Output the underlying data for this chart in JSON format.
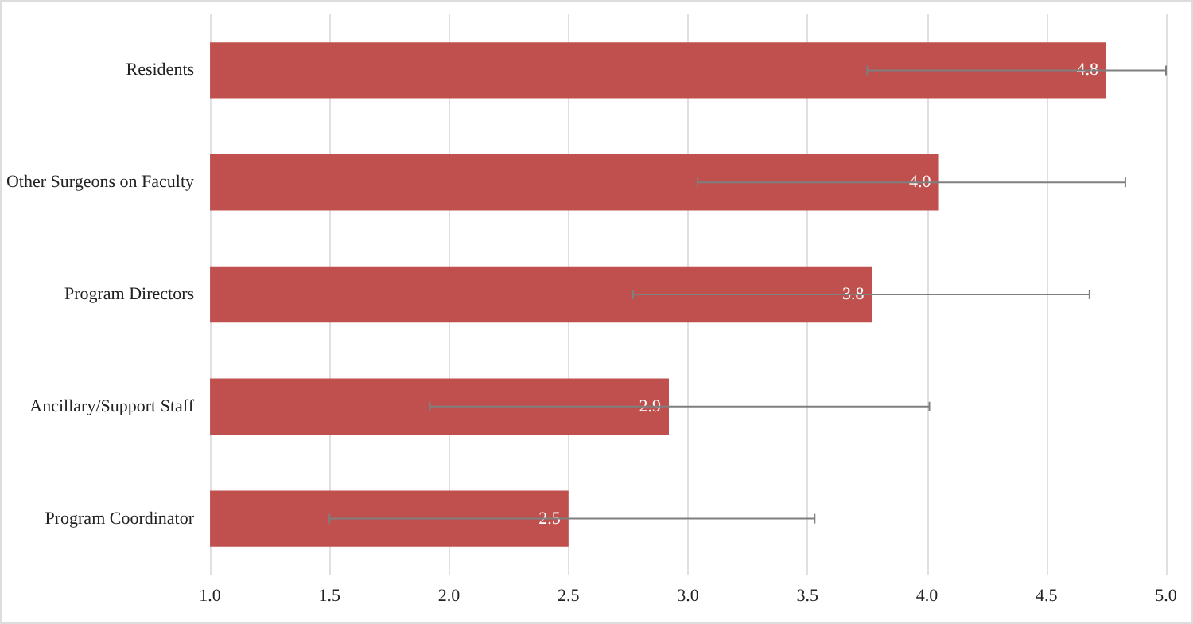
{
  "chart_data": {
    "type": "bar",
    "orientation": "horizontal",
    "categories": [
      "Residents",
      "Other Surgeons on Faculty",
      "Program Directors",
      "Ancillary/Support Staff",
      "Program Coordinator"
    ],
    "values": [
      4.75,
      4.05,
      3.77,
      2.92,
      2.5
    ],
    "value_labels": [
      "4.8",
      "4.0",
      "3.8",
      "2.9",
      "2.5"
    ],
    "errors": [
      [
        3.75,
        5.0
      ],
      [
        3.04,
        4.83
      ],
      [
        2.77,
        4.68
      ],
      [
        1.92,
        4.01
      ],
      [
        1.5,
        3.53
      ]
    ],
    "color": "#c0504d",
    "xlim": [
      1.0,
      5.0
    ],
    "xticks": [
      {
        "value": 1,
        "label": "1.0"
      },
      {
        "value": 1.5,
        "label": "1.5"
      },
      {
        "value": 2,
        "label": "2.0"
      },
      {
        "value": 2.5,
        "label": "2.5"
      },
      {
        "value": 3,
        "label": "3.0"
      },
      {
        "value": 3.5,
        "label": "3.5"
      },
      {
        "value": 4,
        "label": "4.0"
      },
      {
        "value": 4.5,
        "label": "4.5"
      },
      {
        "value": 5,
        "label": "5.0"
      }
    ],
    "grid": "x"
  }
}
